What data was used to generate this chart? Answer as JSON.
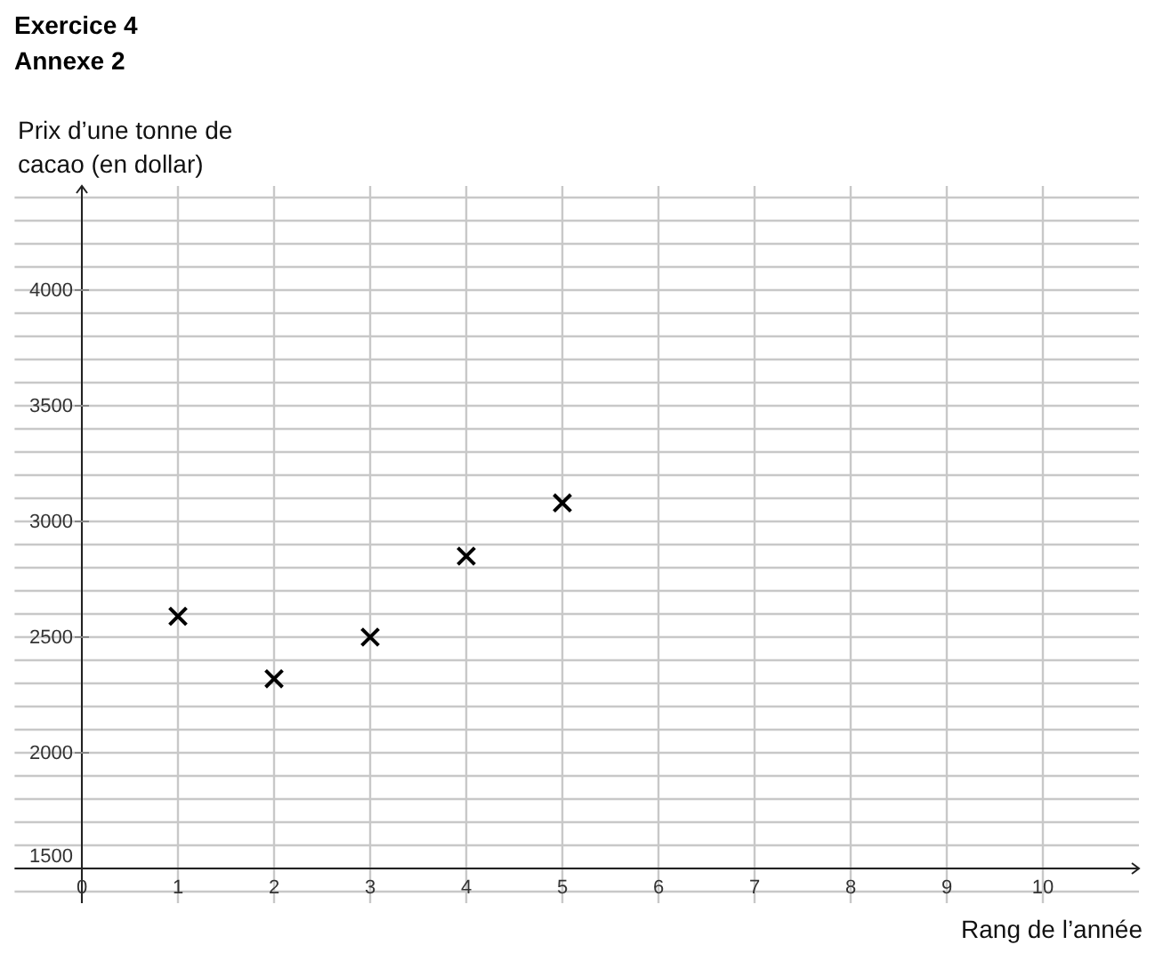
{
  "chart_data": {
    "type": "scatter",
    "title": "Exercice 4",
    "subtitle": "Annexe 2",
    "ylabel": "Prix d’une tonne de cacao (en dollar)",
    "xlabel": "Rang de l’année",
    "x": [
      1,
      2,
      3,
      4,
      5
    ],
    "series": [
      {
        "color": "#000000",
        "values": [
          2590,
          2320,
          2500,
          2850,
          3080
        ]
      }
    ],
    "marker": "cross",
    "grid": true,
    "xlim": [
      -0.7,
      11
    ],
    "xticks": [
      0,
      1,
      2,
      3,
      4,
      5,
      6,
      7,
      8,
      9,
      10
    ],
    "ylim": [
      1350,
      4450
    ],
    "yticks": [
      {
        "value": 1400,
        "label": null
      },
      1500,
      {
        "value": 1600,
        "label": null
      },
      {
        "value": 1700,
        "label": null
      },
      {
        "value": 1800,
        "label": null
      },
      {
        "value": 1900,
        "label": null
      },
      2000,
      {
        "value": 2100,
        "label": null
      },
      {
        "value": 2200,
        "label": null
      },
      {
        "value": 2300,
        "label": null
      },
      {
        "value": 2400,
        "label": null
      },
      2500,
      {
        "value": 2600,
        "label": null
      },
      {
        "value": 2700,
        "label": null
      },
      {
        "value": 2800,
        "label": null
      },
      {
        "value": 2900,
        "label": null
      },
      3000,
      {
        "value": 3100,
        "label": null
      },
      {
        "value": 3200,
        "label": null
      },
      {
        "value": 3300,
        "label": null
      },
      {
        "value": 3400,
        "label": null
      },
      3500,
      {
        "value": 3600,
        "label": null
      },
      {
        "value": 3700,
        "label": null
      },
      {
        "value": 3800,
        "label": null
      },
      {
        "value": 3900,
        "label": null
      },
      4000,
      {
        "value": 4100,
        "label": null
      },
      {
        "value": 4200,
        "label": null
      },
      {
        "value": 4300,
        "label": null
      },
      {
        "value": 4400,
        "label": null
      }
    ]
  }
}
